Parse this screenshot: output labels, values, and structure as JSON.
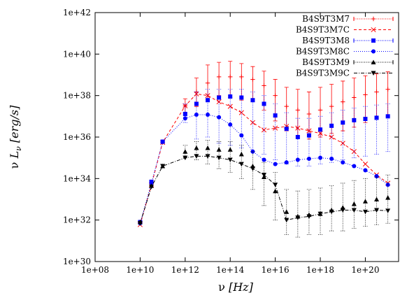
{
  "chart_data": {
    "type": "line",
    "title": "",
    "xlabel": "ν [Hz]",
    "ylabel": "ν L_ν [erg/s]",
    "xlabel_parts": {
      "sym": "ν",
      "unit": "[Hz]"
    },
    "ylabel_parts": {
      "sym": "ν",
      "L": "L",
      "sub": "ν",
      "unit": "[erg/s]"
    },
    "xscale": "log",
    "yscale": "log",
    "xlim": [
      100000000.0,
      3e+21
    ],
    "ylim": [
      1e+30,
      1e+42
    ],
    "xticks": [
      100000000.0,
      10000000000.0,
      1000000000000.0,
      100000000000000.0,
      1e+16,
      1e+18,
      1e+20
    ],
    "xtick_labels": [
      "1e+08",
      "1e+10",
      "1e+12",
      "1e+14",
      "1e+16",
      "1e+18",
      "1e+20"
    ],
    "yticks": [
      1e+30,
      1e+32,
      1e+34,
      1e+36,
      1e+38,
      1e+40,
      1e+42
    ],
    "ytick_labels": [
      "1e+30",
      "1e+32",
      "1e+34",
      "1e+36",
      "1e+38",
      "1e+40",
      "1e+42"
    ],
    "grid": false,
    "legend_position": "top-right",
    "series": [
      {
        "name": "B4S9T3M7",
        "color": "#ff0000",
        "marker": "plus",
        "dash": "none",
        "connect": false,
        "x": [
          10000000000.0,
          31600000000.0,
          100000000000.0,
          1000000000000.0,
          3160000000000.0,
          10000000000000.0,
          31600000000000.0,
          100000000000000.0,
          316000000000000.0,
          1000000000000000.0,
          3160000000000000.0,
          1e+16,
          3.16e+16,
          1e+17,
          3.16e+17,
          1e+18,
          3.16e+18,
          1e+19,
          3.16e+19,
          1e+20,
          3.16e+20,
          1e+21
        ],
        "y": [
          8e+31,
          5.5e+33,
          5.5e+35,
          3.2e+37,
          1.5e+38,
          4e+38,
          8e+38,
          8e+38,
          8e+38,
          6e+38,
          3e+38,
          1e+38,
          3e+37,
          2e+37,
          1.3e+37,
          2e+37,
          3e+37,
          5e+37,
          8e+37,
          1.1e+38,
          1.5e+38,
          2e+38
        ],
        "err_low": [
          8e+31,
          5.5e+33,
          5.5e+35,
          1.5e+37,
          3e+37,
          6e+37,
          1e+38,
          8e+37,
          6e+37,
          5e+37,
          2e+37,
          6e+36,
          2e+36,
          1e+36,
          8e+35,
          1e+36,
          1.5e+36,
          2e+36,
          3e+36,
          5e+36,
          8e+36,
          1e+37
        ],
        "err_high": [
          8e+31,
          5.5e+33,
          5.5e+35,
          7e+37,
          7e+38,
          3e+39,
          4e+39,
          4.5e+39,
          3.5e+39,
          2.5e+39,
          1.5e+39,
          6e+38,
          2.5e+38,
          2e+38,
          1.5e+38,
          2.5e+38,
          3.5e+38,
          5e+38,
          7e+38,
          9e+38,
          1.1e+39,
          1.4e+39
        ]
      },
      {
        "name": "B4S9T3M7C",
        "color": "#ff0000",
        "marker": "cross",
        "dash": "4,3",
        "connect": true,
        "x": [
          10000000000.0,
          31600000000.0,
          100000000000.0,
          1000000000000.0,
          3160000000000.0,
          10000000000000.0,
          31600000000000.0,
          100000000000000.0,
          316000000000000.0,
          1000000000000000.0,
          3160000000000000.0,
          1e+16,
          3.16e+16,
          1e+17,
          3.16e+17,
          1e+18,
          3.16e+18,
          1e+19,
          3.16e+19,
          1e+20,
          3.16e+20,
          1e+21
        ],
        "y": [
          6e+31,
          5e+33,
          5.5e+35,
          3.2e+37,
          1.2e+38,
          1e+38,
          5e+37,
          3e+37,
          1.5e+37,
          5e+36,
          2.2e+36,
          2.7e+36,
          3.3e+36,
          2.7e+36,
          2e+36,
          1.5e+36,
          1e+36,
          5e+35,
          2e+35,
          5e+34,
          1.5e+34,
          6e+33
        ]
      },
      {
        "name": "B4S9T3M8",
        "color": "#0000ff",
        "marker": "square",
        "dash": "none",
        "connect": false,
        "x": [
          10000000000.0,
          31600000000.0,
          100000000000.0,
          1000000000000.0,
          3160000000000.0,
          10000000000000.0,
          31600000000000.0,
          100000000000000.0,
          316000000000000.0,
          1000000000000000.0,
          3160000000000000.0,
          1e+16,
          3.16e+16,
          1e+17,
          3.16e+17,
          1e+18,
          3.16e+18,
          1e+19,
          3.16e+19,
          1e+20,
          3.16e+20,
          1e+21
        ],
        "y": [
          8e+31,
          7e+33,
          6e+35,
          1.3e+37,
          4e+37,
          6e+37,
          8e+37,
          9e+37,
          8e+37,
          6e+37,
          4e+37,
          1.1e+37,
          2.5e+36,
          1e+36,
          1.2e+36,
          2.3e+36,
          3.5e+36,
          5e+36,
          6.5e+36,
          7.5e+36,
          8.5e+36,
          1e+37
        ],
        "err_low": [
          8e+31,
          7e+33,
          6e+35,
          5e+36,
          8e+35,
          1e+36,
          5e+35,
          4e+35,
          3e+35,
          2e+35,
          1.5e+35,
          8e+34,
          5e+34,
          4e+34,
          4e+34,
          5e+34,
          6e+34,
          8e+34,
          1e+35,
          1.2e+35,
          1.5e+35,
          2e+35
        ],
        "err_high": [
          8e+31,
          7e+33,
          6e+35,
          4e+37,
          1.5e+38,
          2e+38,
          2e+38,
          2e+38,
          2e+38,
          1.5e+38,
          1e+38,
          4e+37,
          1.5e+37,
          8e+36,
          8e+36,
          1e+37,
          1.5e+37,
          2e+37,
          2.5e+37,
          3e+37,
          3.5e+37,
          4e+37
        ]
      },
      {
        "name": "B4S9T3M8C",
        "color": "#0000ff",
        "marker": "circle",
        "dash": "1,2",
        "connect": true,
        "x": [
          10000000000.0,
          31600000000.0,
          100000000000.0,
          1000000000000.0,
          3160000000000.0,
          10000000000000.0,
          31600000000000.0,
          100000000000000.0,
          316000000000000.0,
          1000000000000000.0,
          3160000000000000.0,
          1e+16,
          3.16e+16,
          1e+17,
          3.16e+17,
          1e+18,
          3.16e+18,
          1e+19,
          3.16e+19,
          1e+20,
          3.16e+20,
          1e+21
        ],
        "y": [
          7e+31,
          6e+33,
          6e+35,
          8e+36,
          1.2e+37,
          1.2e+37,
          9e+36,
          4e+36,
          1.2e+36,
          2e+35,
          8e+34,
          5e+34,
          6e+34,
          8e+34,
          9e+34,
          1e+35,
          9e+34,
          6e+34,
          4e+34,
          2.5e+34,
          1.3e+34,
          5e+33
        ]
      },
      {
        "name": "B4S9T3M9",
        "color": "#000000",
        "marker": "triangle-up",
        "dash": "none",
        "connect": false,
        "x": [
          10000000000.0,
          31600000000.0,
          100000000000.0,
          1000000000000.0,
          3160000000000.0,
          10000000000000.0,
          31600000000000.0,
          100000000000000.0,
          316000000000000.0,
          1000000000000000.0,
          3160000000000000.0,
          1e+16,
          3.16e+16,
          1e+17,
          3.16e+17,
          1e+18,
          3.16e+18,
          1e+19,
          3.16e+19,
          1e+20,
          3.16e+20,
          1e+21
        ],
        "y": [
          8e+31,
          4.5e+33,
          4e+34,
          2e+35,
          3e+35,
          3e+35,
          2.5e+35,
          2.5e+35,
          1.5e+35,
          4e+34,
          1.2e+34,
          2.5e+33,
          2.5e+32,
          1.5e+32,
          1.8e+32,
          2e+32,
          3e+32,
          4e+32,
          6e+32,
          8e+32,
          1e+33,
          1.2e+33
        ],
        "err_low": [
          8e+31,
          4.5e+33,
          4e+34,
          1e+35,
          8e+34,
          5e+34,
          3e+34,
          2e+34,
          1e+34,
          3e+33,
          5e+32,
          1e+32,
          2e+31,
          1.5e+31,
          2e+31,
          2e+31,
          3e+31,
          3e+31,
          4e+31,
          5e+31,
          6e+31,
          7e+31
        ],
        "err_high": [
          8e+31,
          4.5e+33,
          4e+34,
          4e+35,
          6e+35,
          7e+35,
          6e+35,
          6e+35,
          4e+35,
          2e+35,
          6e+34,
          2e+34,
          3e+33,
          2.5e+33,
          3e+33,
          3.5e+33,
          4.5e+33,
          6e+33,
          8e+33,
          1e+34,
          1.2e+34,
          1.5e+34
        ]
      },
      {
        "name": "B4S9T3M9C",
        "color": "#000000",
        "marker": "triangle-down",
        "dash": "5,2,1,2",
        "connect": true,
        "x": [
          10000000000.0,
          31600000000.0,
          100000000000.0,
          1000000000000.0,
          3160000000000.0,
          10000000000000.0,
          31600000000000.0,
          100000000000000.0,
          316000000000000.0,
          1000000000000000.0,
          3160000000000000.0,
          1e+16,
          3.16e+16,
          1e+17,
          3.16e+17,
          1e+18,
          3.16e+18,
          1e+19,
          3.16e+19,
          1e+20,
          3.16e+20,
          1e+21
        ],
        "y": [
          7e+31,
          4e+33,
          4e+34,
          1e+35,
          1.2e+35,
          1.2e+35,
          1e+35,
          8e+34,
          5e+34,
          3e+34,
          1.5e+34,
          5e+33,
          1e+32,
          1.3e+32,
          1.5e+32,
          2e+32,
          2.5e+32,
          3e+32,
          3e+32,
          2.5e+32,
          3e+32,
          2.8e+32
        ]
      }
    ]
  }
}
